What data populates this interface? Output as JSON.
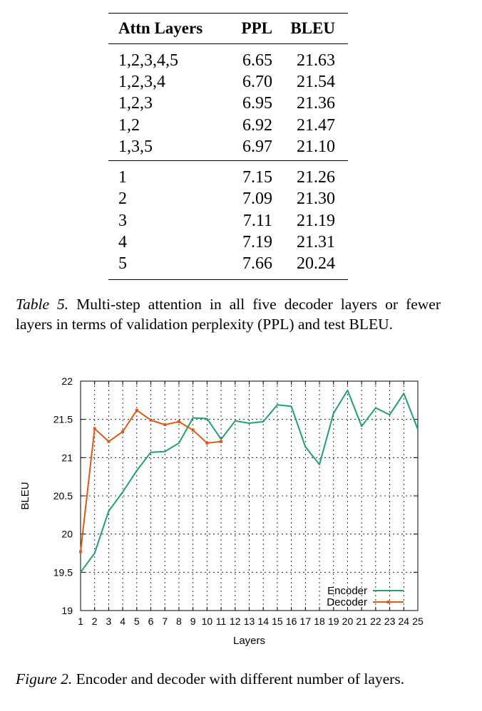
{
  "table": {
    "headers": [
      "Attn Layers",
      "PPL",
      "BLEU"
    ],
    "group1": [
      [
        "1,2,3,4,5",
        "6.65",
        "21.63"
      ],
      [
        "1,2,3,4",
        "6.70",
        "21.54"
      ],
      [
        "1,2,3",
        "6.95",
        "21.36"
      ],
      [
        "1,2",
        "6.92",
        "21.47"
      ],
      [
        "1,3,5",
        "6.97",
        "21.10"
      ]
    ],
    "group2": [
      [
        "1",
        "7.15",
        "21.26"
      ],
      [
        "2",
        "7.09",
        "21.30"
      ],
      [
        "3",
        "7.11",
        "21.19"
      ],
      [
        "4",
        "7.19",
        "21.31"
      ],
      [
        "5",
        "7.66",
        "20.24"
      ]
    ]
  },
  "table_caption": {
    "label": "Table 5.",
    "text": " Multi-step attention in all five decoder layers or fewer layers in terms of validation perplexity (PPL) and test BLEU."
  },
  "figure_caption": {
    "label": "Figure 2.",
    "text": " Encoder and decoder with different number of layers."
  },
  "chart_data": {
    "type": "line",
    "xlabel": "Layers",
    "ylabel": "BLEU",
    "xlim": [
      1,
      25
    ],
    "ylim": [
      19,
      22
    ],
    "x_ticks": [
      "1",
      "2",
      "3",
      "4",
      "5",
      "6",
      "7",
      "8",
      "9",
      "10",
      "11",
      "12",
      "13",
      "14",
      "15",
      "16",
      "17",
      "18",
      "19",
      "20",
      "21",
      "22",
      "23",
      "24",
      "25"
    ],
    "y_ticks": [
      "19",
      "19.5",
      "20",
      "20.5",
      "21",
      "21.5",
      "22"
    ],
    "grid": true,
    "legend_position": "bottom-right",
    "colors": {
      "Encoder": "#229e72",
      "Decoder": "#d85b17"
    },
    "series": [
      {
        "name": "Encoder",
        "x": [
          1,
          2,
          3,
          4,
          5,
          6,
          7,
          8,
          9,
          10,
          11,
          12,
          13,
          14,
          15,
          16,
          17,
          18,
          19,
          20,
          21,
          22,
          23,
          24,
          25
        ],
        "values": [
          19.5,
          19.75,
          20.3,
          20.55,
          20.83,
          21.07,
          21.08,
          21.19,
          21.52,
          21.51,
          21.24,
          21.48,
          21.45,
          21.47,
          21.69,
          21.67,
          21.14,
          20.91,
          21.58,
          21.88,
          21.41,
          21.65,
          21.56,
          21.84,
          21.37
        ]
      },
      {
        "name": "Decoder",
        "x": [
          1,
          2,
          3,
          4,
          5,
          6,
          7,
          8,
          9,
          10,
          11
        ],
        "values": [
          19.77,
          21.38,
          21.21,
          21.34,
          21.62,
          21.49,
          21.43,
          21.47,
          21.36,
          21.19,
          21.21
        ]
      }
    ]
  }
}
